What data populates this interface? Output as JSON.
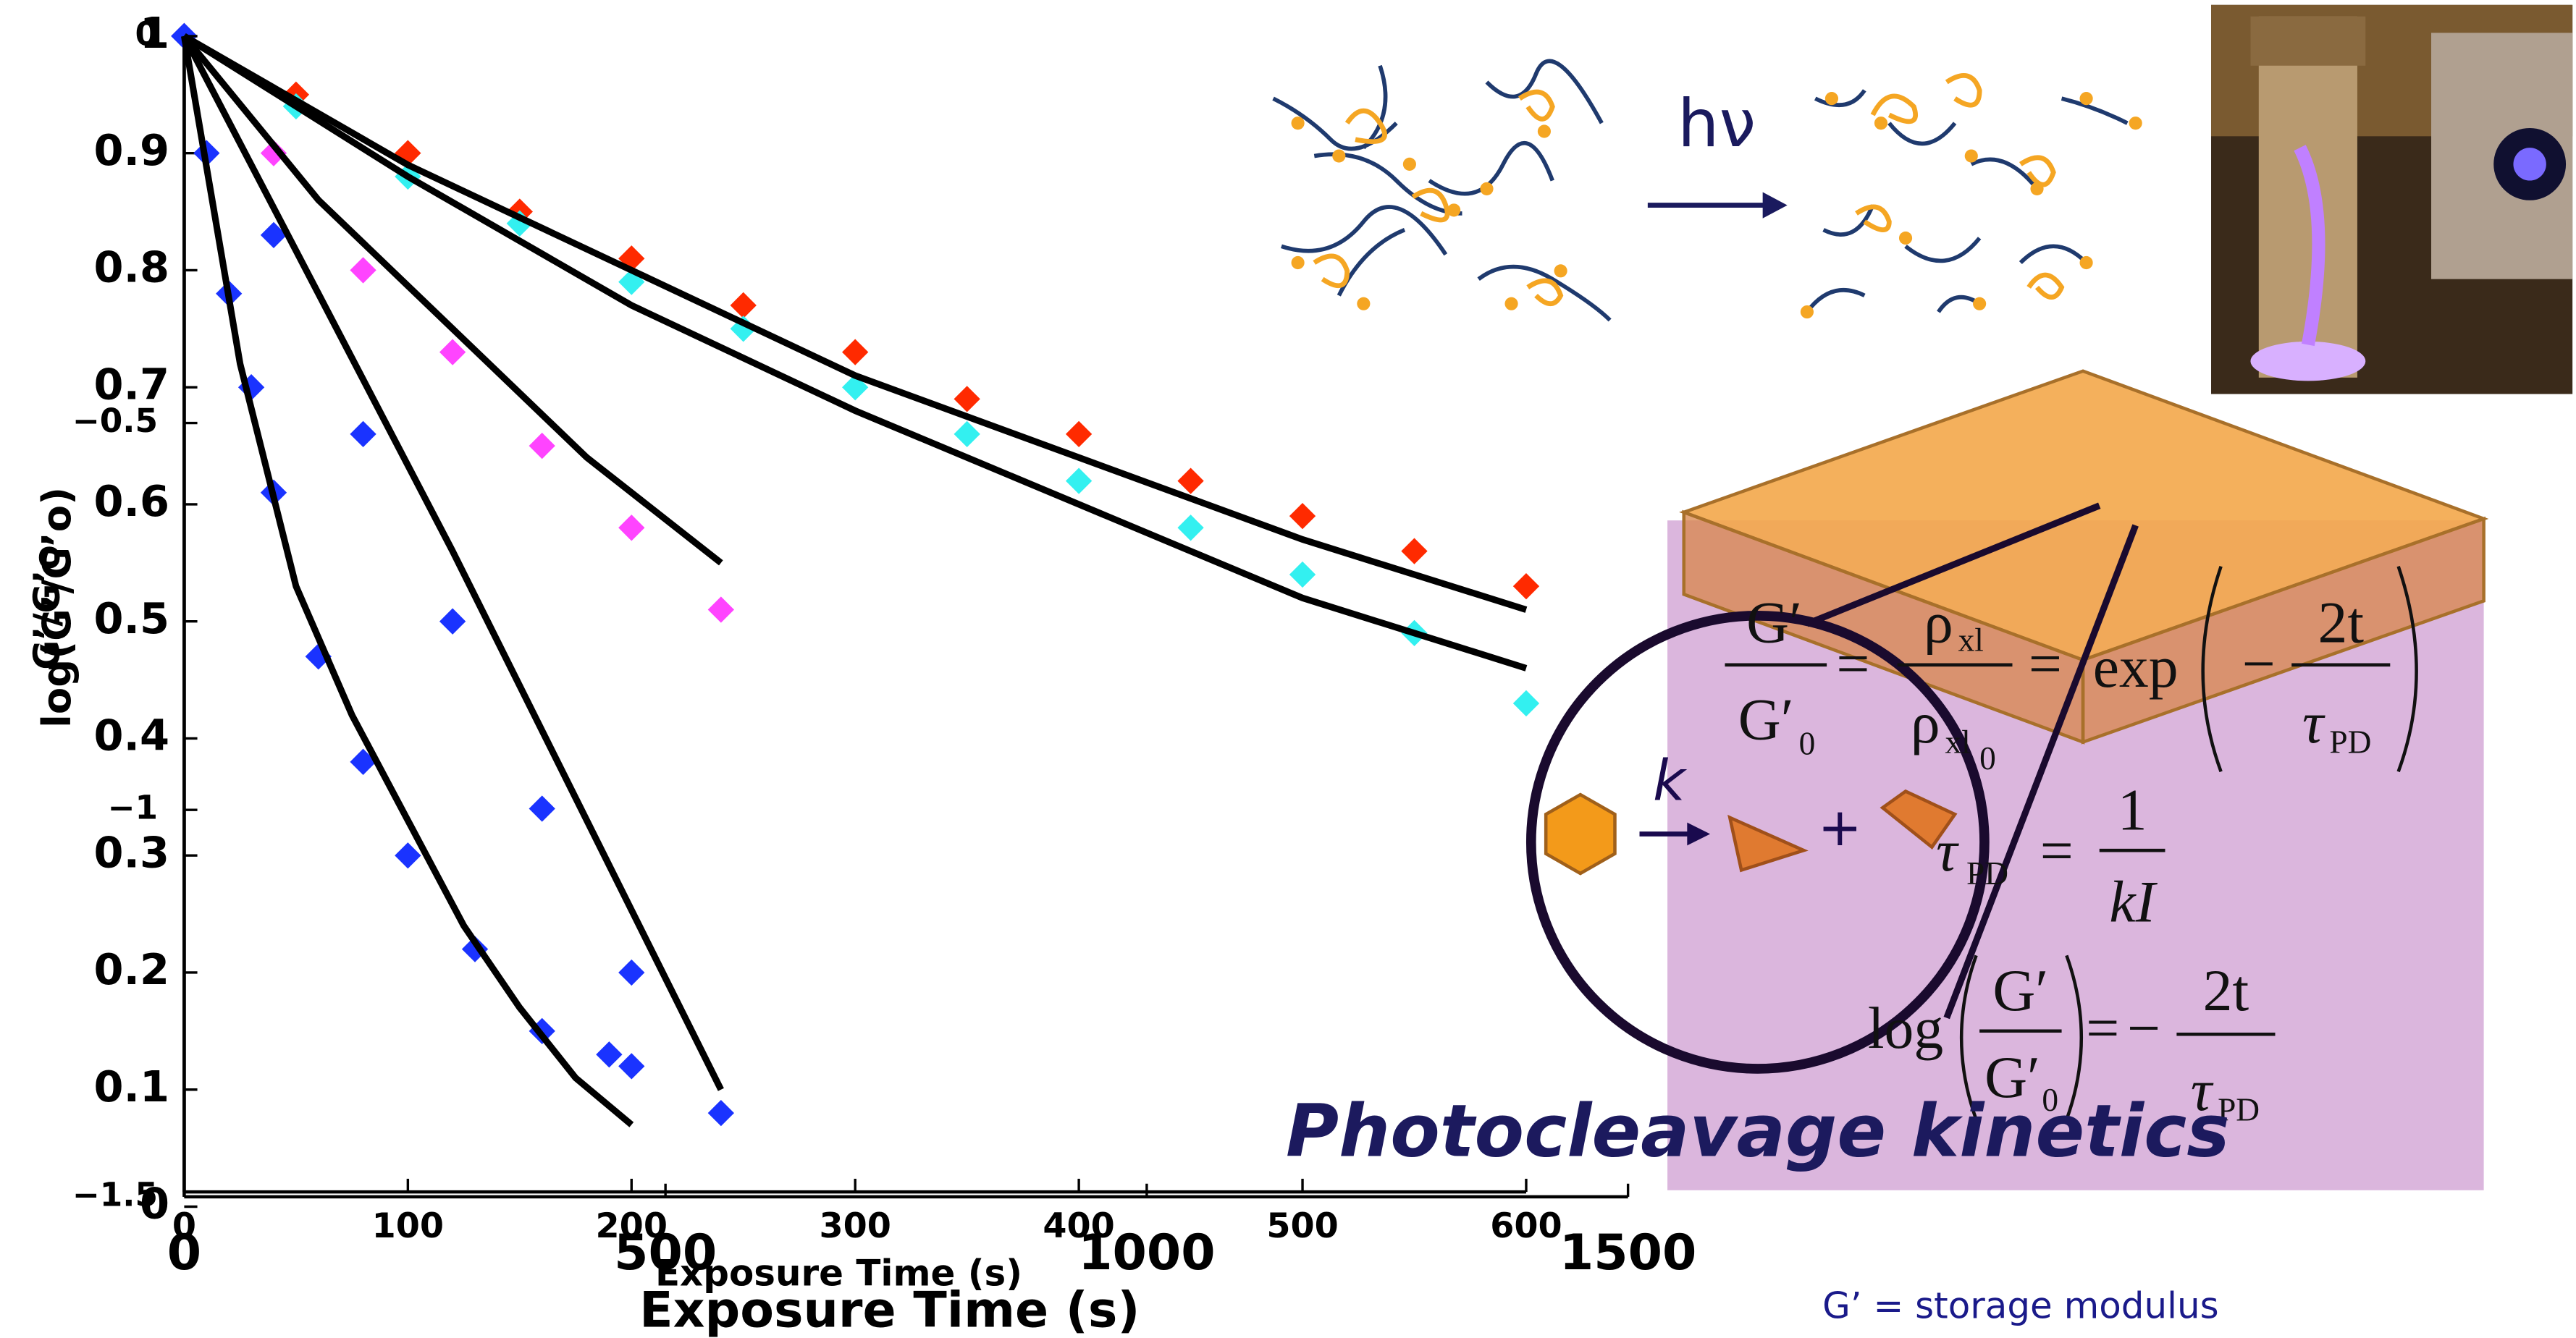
{
  "chart_data": [
    {
      "type": "scatter",
      "x_label": "Exposure Time (s)",
      "y_label": "G’/G’o",
      "xlim": [
        0,
        600
      ],
      "xticks": [
        0,
        100,
        200,
        300,
        400,
        500,
        600
      ],
      "ylim": [
        0,
        1
      ],
      "yticks": [
        0,
        0.1,
        0.2,
        0.3,
        0.4,
        0.5,
        0.6,
        0.7,
        0.8,
        0.9,
        1
      ],
      "series": [
        {
          "color": "#ff2a00",
          "x": [
            0,
            50,
            100,
            150,
            200,
            250,
            300,
            350,
            400,
            450,
            500,
            550,
            600
          ],
          "values": [
            1,
            0.95,
            0.9,
            0.85,
            0.81,
            0.77,
            0.73,
            0.69,
            0.66,
            0.62,
            0.59,
            0.56,
            0.53
          ]
        },
        {
          "color": "#33f0f0",
          "x": [
            0,
            50,
            100,
            150,
            200,
            250,
            300,
            350,
            400,
            450,
            500,
            550,
            600
          ],
          "values": [
            1,
            0.94,
            0.88,
            0.84,
            0.79,
            0.75,
            0.7,
            0.66,
            0.62,
            0.58,
            0.54,
            0.49,
            0.43
          ]
        },
        {
          "color": "#ff44ff",
          "x": [
            0,
            40,
            80,
            120,
            160,
            200,
            240
          ],
          "values": [
            1,
            0.9,
            0.8,
            0.73,
            0.65,
            0.58,
            0.51
          ]
        },
        {
          "color": "#1a33ff",
          "x": [
            0,
            40,
            80,
            120,
            160,
            200,
            240
          ],
          "values": [
            1,
            0.83,
            0.66,
            0.5,
            0.34,
            0.2,
            0.08
          ]
        },
        {
          "color": "#1a33ff",
          "x": [
            0,
            10,
            20,
            30,
            40,
            60,
            80,
            100,
            130,
            160,
            190,
            200
          ],
          "values": [
            1,
            0.9,
            0.78,
            0.7,
            0.61,
            0.47,
            0.38,
            0.3,
            0.22,
            0.15,
            0.13,
            0.12
          ]
        }
      ],
      "fits": [
        {
          "color": "#000000",
          "x": [
            0,
            100,
            200,
            300,
            400,
            500,
            600
          ],
          "values": [
            1,
            0.89,
            0.8,
            0.71,
            0.64,
            0.57,
            0.51
          ]
        },
        {
          "color": "#000000",
          "x": [
            0,
            100,
            200,
            300,
            400,
            500,
            600
          ],
          "values": [
            1,
            0.88,
            0.77,
            0.68,
            0.6,
            0.52,
            0.46
          ]
        },
        {
          "color": "#000000",
          "x": [
            0,
            60,
            120,
            180,
            240
          ],
          "values": [
            1,
            0.86,
            0.75,
            0.64,
            0.55
          ]
        },
        {
          "color": "#000000",
          "x": [
            0,
            60,
            120,
            180,
            240
          ],
          "values": [
            1,
            0.78,
            0.56,
            0.33,
            0.1
          ]
        },
        {
          "color": "#000000",
          "x": [
            0,
            25,
            50,
            75,
            100,
            125,
            150,
            175,
            200
          ],
          "values": [
            1,
            0.72,
            0.53,
            0.42,
            0.33,
            0.24,
            0.17,
            0.11,
            0.07
          ]
        }
      ]
    },
    {
      "type": "axes",
      "x_label": "Exposure Time (s)",
      "y_label": "log(G’/G’o)",
      "xlim": [
        0,
        1500
      ],
      "xticks": [
        0,
        500,
        1000,
        1500
      ],
      "ylim": [
        -1.5,
        0
      ],
      "yticks": [
        {
          "value": -1.5,
          "label": "−1.5"
        },
        {
          "value": -1,
          "label": "−1"
        },
        {
          "value": -0.5,
          "label": "−0.5"
        },
        0
      ]
    }
  ],
  "diagram": {
    "arrow_label": "hν",
    "rate_label": "k",
    "plus": "+",
    "equals": "=",
    "minus": "−",
    "g": "G′",
    "zero": "0",
    "rho": "ρ",
    "xl": "xl",
    "exp": "exp",
    "two_t": "2t",
    "tau": "τ",
    "pd": "PD",
    "one": "1",
    "ki": "kI",
    "log": "log",
    "title": "Photocleavage kinetics",
    "note": "G’ = storage modulus"
  }
}
